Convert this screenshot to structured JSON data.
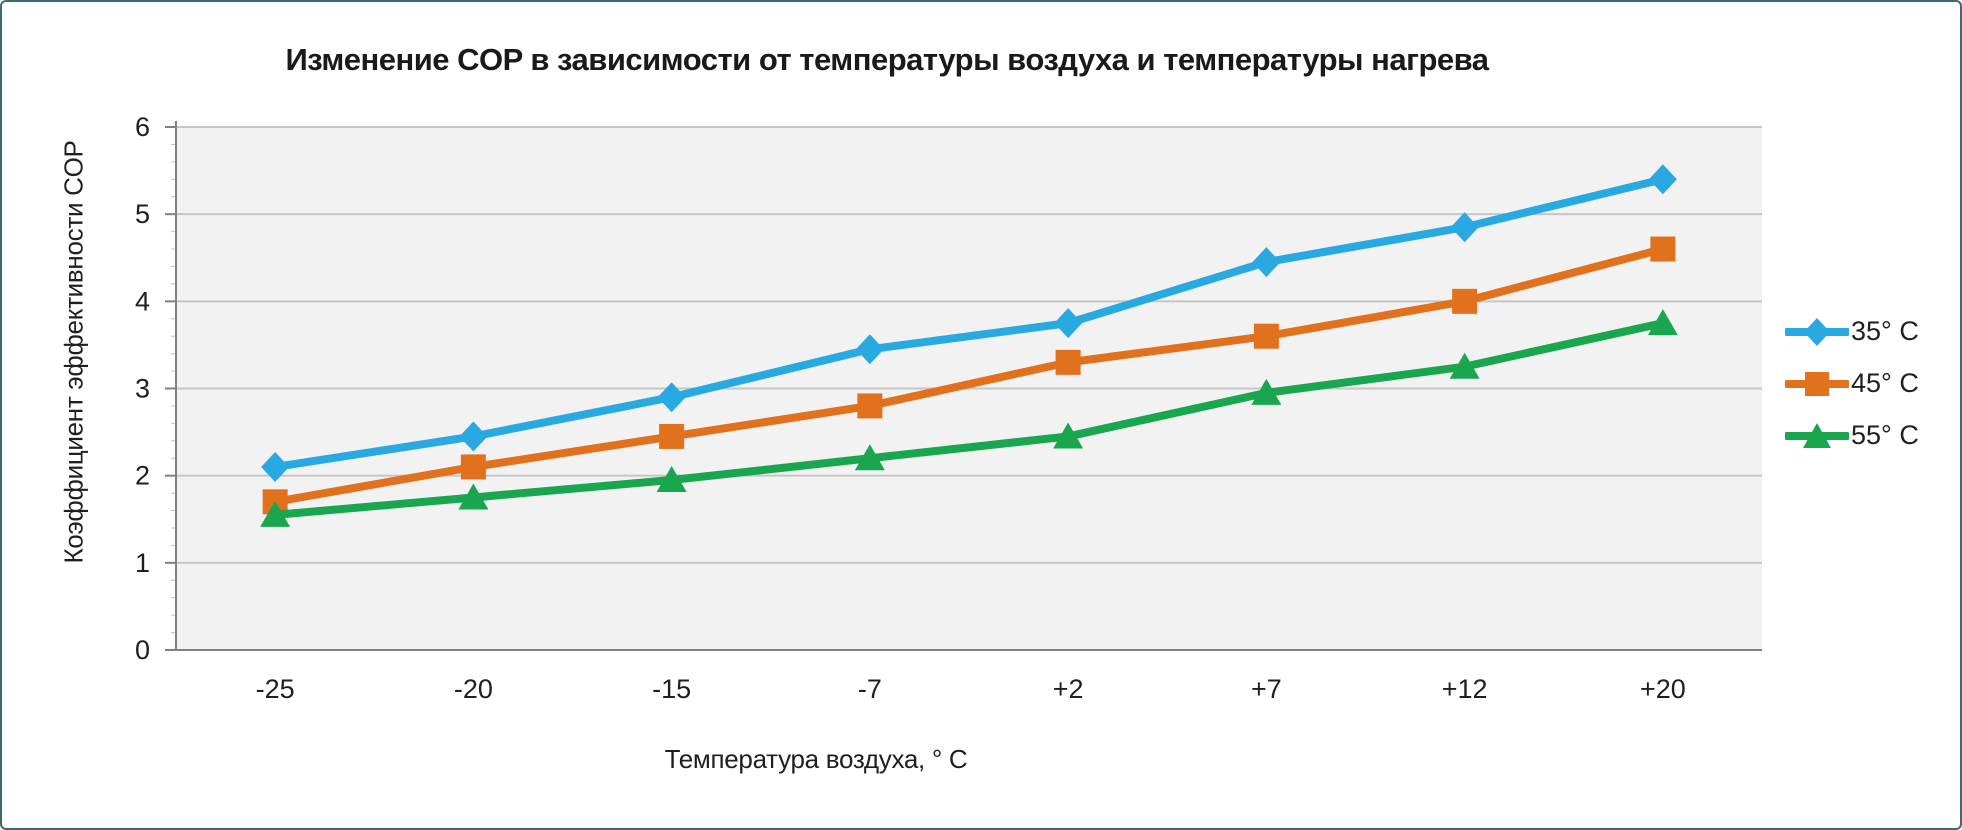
{
  "chart_data": {
    "type": "line",
    "title": "Изменение COP в зависимости от температуры воздуха и температуры нагрева",
    "xlabel": "Температура воздуха, ° С",
    "ylabel": "Коэффициент эффективности COP",
    "categories": [
      "-25",
      "-20",
      "-15",
      "-7",
      "+2",
      "+7",
      "+12",
      "+20"
    ],
    "series": [
      {
        "name": "35° С",
        "marker": "diamond",
        "color": "#29A9E1",
        "values": [
          2.1,
          2.45,
          2.9,
          3.45,
          3.75,
          4.45,
          4.85,
          5.4
        ]
      },
      {
        "name": "45° С",
        "marker": "square",
        "color": "#E1711D",
        "values": [
          1.7,
          2.1,
          2.45,
          2.8,
          3.3,
          3.6,
          4.0,
          4.6
        ]
      },
      {
        "name": "55° С",
        "marker": "triangle",
        "color": "#19A64E",
        "values": [
          1.55,
          1.75,
          1.95,
          2.2,
          2.45,
          2.95,
          3.25,
          3.75
        ]
      }
    ],
    "ylim": [
      0,
      6
    ],
    "y_ticks": [
      0,
      1,
      2,
      3,
      4,
      5,
      6
    ],
    "grid": "horizontal-major",
    "legend_position": "right",
    "colors": {
      "plot_bg": "#F2F2F2",
      "grid_line": "#C6C6C6",
      "axis_line": "#808080",
      "minor_tick": "#BFBFBF",
      "text": "#1f1f1f",
      "frame_border": "#3e6b6e"
    }
  }
}
